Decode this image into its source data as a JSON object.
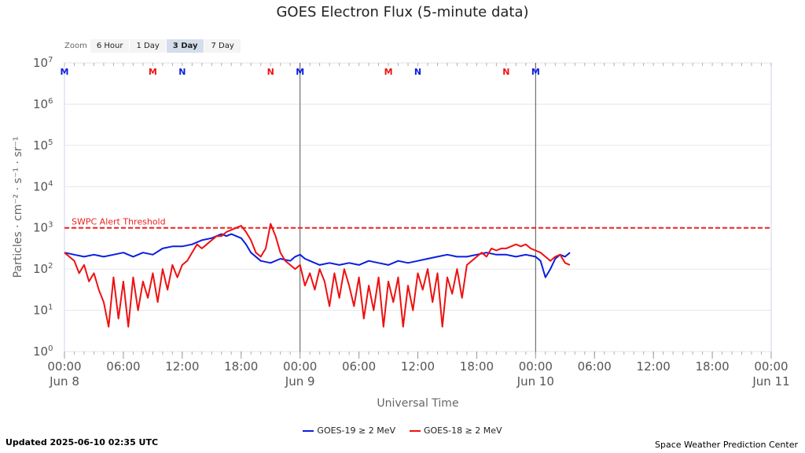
{
  "title": "GOES Electron Flux (5-minute data)",
  "zoom": {
    "label": "Zoom",
    "options": [
      "6 Hour",
      "1 Day",
      "3 Day",
      "7 Day"
    ],
    "selected": "3 Day"
  },
  "footer": {
    "updated": "Updated 2025-06-10 02:35 UTC",
    "credit": "Space Weather Prediction Center"
  },
  "colors": {
    "goes19": "#0a1ee0",
    "goes18": "#ee1111",
    "threshold": "#ee2222",
    "grid": "#e6e6e6",
    "axis": "#ccd6eb"
  },
  "chart_data": {
    "type": "line",
    "title": "GOES Electron Flux (5-minute data)",
    "xlabel": "Universal Time",
    "ylabel": "Particles · cm⁻² · s⁻¹ · sr⁻¹",
    "y_scale": "log",
    "ylim_exp": [
      0,
      7
    ],
    "xlim_hours": [
      0,
      72
    ],
    "y_ticks": [
      {
        "base": "10",
        "exp": "0",
        "value": 0
      },
      {
        "base": "10",
        "exp": "1",
        "value": 1
      },
      {
        "base": "10",
        "exp": "2",
        "value": 2
      },
      {
        "base": "10",
        "exp": "3",
        "value": 3
      },
      {
        "base": "10",
        "exp": "4",
        "value": 4
      },
      {
        "base": "10",
        "exp": "5",
        "value": 5
      },
      {
        "base": "10",
        "exp": "6",
        "value": 6
      },
      {
        "base": "10",
        "exp": "7",
        "value": 7
      }
    ],
    "x_ticks": [
      {
        "hour": 0,
        "label": "00:00",
        "date": "Jun 8"
      },
      {
        "hour": 6,
        "label": "06:00",
        "date": ""
      },
      {
        "hour": 12,
        "label": "12:00",
        "date": ""
      },
      {
        "hour": 18,
        "label": "18:00",
        "date": ""
      },
      {
        "hour": 24,
        "label": "00:00",
        "date": "Jun 9"
      },
      {
        "hour": 30,
        "label": "06:00",
        "date": ""
      },
      {
        "hour": 36,
        "label": "12:00",
        "date": ""
      },
      {
        "hour": 42,
        "label": "18:00",
        "date": ""
      },
      {
        "hour": 48,
        "label": "00:00",
        "date": "Jun 10"
      },
      {
        "hour": 54,
        "label": "06:00",
        "date": ""
      },
      {
        "hour": 60,
        "label": "12:00",
        "date": ""
      },
      {
        "hour": 66,
        "label": "18:00",
        "date": ""
      },
      {
        "hour": 72,
        "label": "00:00",
        "date": "Jun 11"
      }
    ],
    "day_lines_hours": [
      24,
      48
    ],
    "threshold": {
      "label": "SWPC Alert Threshold",
      "value": 3
    },
    "markers": [
      {
        "hour": 0.0,
        "text": "M",
        "color": "#0a1ee0"
      },
      {
        "hour": 9.0,
        "text": "M",
        "color": "#ee1111"
      },
      {
        "hour": 12.0,
        "text": "N",
        "color": "#0a1ee0"
      },
      {
        "hour": 21.0,
        "text": "N",
        "color": "#ee1111"
      },
      {
        "hour": 24.0,
        "text": "M",
        "color": "#0a1ee0"
      },
      {
        "hour": 33.0,
        "text": "M",
        "color": "#ee1111"
      },
      {
        "hour": 36.0,
        "text": "N",
        "color": "#0a1ee0"
      },
      {
        "hour": 45.0,
        "text": "N",
        "color": "#ee1111"
      },
      {
        "hour": 48.0,
        "text": "M",
        "color": "#0a1ee0"
      }
    ],
    "series": [
      {
        "name": "GOES-19 ≥ 2 MeV",
        "color": "#0a1ee0",
        "x_hours": [
          0,
          1,
          2,
          3,
          4,
          5,
          6,
          7,
          8,
          9,
          10,
          11,
          12,
          13,
          14,
          15,
          15.5,
          16,
          16.5,
          17,
          17.5,
          18,
          18.5,
          19,
          20,
          21,
          22,
          23,
          23.5,
          24,
          24.5,
          25,
          26,
          27,
          28,
          29,
          30,
          31,
          32,
          33,
          34,
          35,
          36,
          37,
          38,
          39,
          40,
          41,
          42,
          43,
          44,
          45,
          46,
          47,
          48,
          48.5,
          49,
          49.5,
          50,
          50.5,
          51,
          51.5
        ],
        "values_exp": [
          2.4,
          2.35,
          2.3,
          2.35,
          2.3,
          2.35,
          2.4,
          2.3,
          2.4,
          2.35,
          2.5,
          2.55,
          2.55,
          2.6,
          2.7,
          2.75,
          2.8,
          2.85,
          2.8,
          2.85,
          2.8,
          2.75,
          2.6,
          2.4,
          2.2,
          2.15,
          2.25,
          2.2,
          2.3,
          2.35,
          2.25,
          2.2,
          2.1,
          2.15,
          2.1,
          2.15,
          2.1,
          2.2,
          2.15,
          2.1,
          2.2,
          2.15,
          2.2,
          2.25,
          2.3,
          2.35,
          2.3,
          2.3,
          2.35,
          2.4,
          2.35,
          2.35,
          2.3,
          2.35,
          2.3,
          2.2,
          1.8,
          2.0,
          2.25,
          2.35,
          2.3,
          2.4
        ]
      },
      {
        "name": "GOES-18 ≥ 2 MeV",
        "color": "#ee1111",
        "x_hours": [
          0,
          0.5,
          1,
          1.5,
          2,
          2.5,
          3,
          3.5,
          4,
          4.5,
          5,
          5.5,
          6,
          6.5,
          7,
          7.5,
          8,
          8.5,
          9,
          9.5,
          10,
          10.5,
          11,
          11.5,
          12,
          12.5,
          13,
          13.5,
          14,
          14.5,
          15,
          15.5,
          16,
          16.5,
          17,
          17.5,
          18,
          18.5,
          19,
          19.5,
          20,
          20.5,
          21,
          21.5,
          22,
          22.5,
          23,
          23.5,
          24,
          24.5,
          25,
          25.5,
          26,
          26.5,
          27,
          27.5,
          28,
          28.5,
          29,
          29.5,
          30,
          30.5,
          31,
          31.5,
          32,
          32.5,
          33,
          33.5,
          34,
          34.5,
          35,
          35.5,
          36,
          36.5,
          37,
          37.5,
          38,
          38.5,
          39,
          39.5,
          40,
          40.5,
          41,
          41.5,
          42,
          42.5,
          43,
          43.5,
          44,
          44.5,
          45,
          45.5,
          46,
          46.5,
          47,
          47.5,
          48,
          48.5,
          49,
          49.5,
          50,
          50.5,
          51,
          51.5
        ],
        "values_exp": [
          2.4,
          2.3,
          2.2,
          1.9,
          2.1,
          1.7,
          1.9,
          1.5,
          1.2,
          0.6,
          1.8,
          0.8,
          1.7,
          0.6,
          1.8,
          1.0,
          1.7,
          1.3,
          1.9,
          1.2,
          2.0,
          1.5,
          2.1,
          1.8,
          2.1,
          2.2,
          2.4,
          2.6,
          2.5,
          2.6,
          2.7,
          2.8,
          2.8,
          2.9,
          2.95,
          3.0,
          3.05,
          2.9,
          2.7,
          2.4,
          2.3,
          2.5,
          3.1,
          2.8,
          2.4,
          2.2,
          2.1,
          2.0,
          2.1,
          1.6,
          1.9,
          1.5,
          2.0,
          1.7,
          1.1,
          1.9,
          1.3,
          2.0,
          1.6,
          1.1,
          1.8,
          0.8,
          1.6,
          1.0,
          1.8,
          0.6,
          1.7,
          1.2,
          1.8,
          0.6,
          1.6,
          1.0,
          1.9,
          1.5,
          2.0,
          1.2,
          1.9,
          0.6,
          1.8,
          1.4,
          2.0,
          1.3,
          2.1,
          2.2,
          2.3,
          2.4,
          2.3,
          2.5,
          2.45,
          2.5,
          2.5,
          2.55,
          2.6,
          2.55,
          2.6,
          2.5,
          2.45,
          2.4,
          2.3,
          2.2,
          2.3,
          2.35,
          2.15,
          2.1
        ]
      }
    ]
  }
}
